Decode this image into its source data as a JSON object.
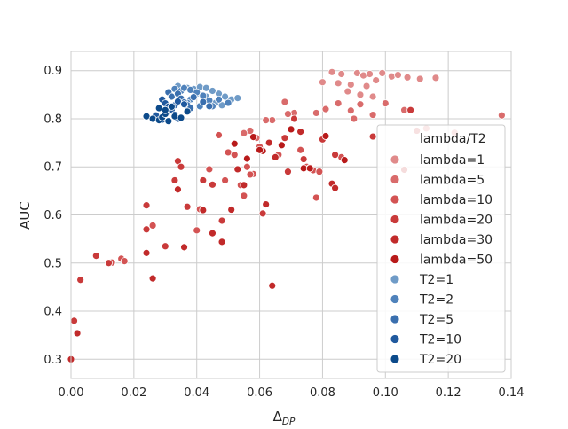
{
  "chart_data": {
    "type": "scatter",
    "title": "",
    "xlabel": "Δ",
    "xlabel_sub": "DP",
    "ylabel": "AUC",
    "xlim": [
      0.0,
      0.14
    ],
    "ylim": [
      0.26,
      0.94
    ],
    "xticks": [
      0.0,
      0.02,
      0.04,
      0.06,
      0.08,
      0.1,
      0.12,
      0.14
    ],
    "xtick_labels": [
      "0.00",
      "0.02",
      "0.04",
      "0.06",
      "0.08",
      "0.10",
      "0.12",
      "0.14"
    ],
    "yticks": [
      0.3,
      0.4,
      0.5,
      0.6,
      0.7,
      0.8,
      0.9
    ],
    "ytick_labels": [
      "0.3",
      "0.4",
      "0.5",
      "0.6",
      "0.7",
      "0.8",
      "0.9"
    ],
    "grid": true,
    "legend_title": "lambda/T2",
    "legend_position": "right",
    "series": [
      {
        "name": "lambda=1",
        "color": "#e08a8a",
        "points": [
          [
            0.083,
            0.897
          ],
          [
            0.086,
            0.893
          ],
          [
            0.091,
            0.895
          ],
          [
            0.093,
            0.89
          ],
          [
            0.095,
            0.893
          ],
          [
            0.099,
            0.895
          ],
          [
            0.102,
            0.888
          ],
          [
            0.104,
            0.891
          ],
          [
            0.107,
            0.886
          ],
          [
            0.111,
            0.883
          ],
          [
            0.116,
            0.885
          ],
          [
            0.08,
            0.876
          ],
          [
            0.085,
            0.874
          ],
          [
            0.089,
            0.871
          ],
          [
            0.094,
            0.868
          ],
          [
            0.097,
            0.88
          ],
          [
            0.088,
            0.857
          ],
          [
            0.092,
            0.85
          ],
          [
            0.096,
            0.846
          ]
        ]
      },
      {
        "name": "lambda=5",
        "color": "#d96b6b",
        "points": [
          [
            0.068,
            0.835
          ],
          [
            0.078,
            0.812
          ],
          [
            0.085,
            0.832
          ],
          [
            0.089,
            0.817
          ],
          [
            0.09,
            0.8
          ],
          [
            0.092,
            0.83
          ],
          [
            0.096,
            0.808
          ],
          [
            0.1,
            0.832
          ],
          [
            0.106,
            0.818
          ],
          [
            0.071,
            0.812
          ],
          [
            0.064,
            0.797
          ],
          [
            0.062,
            0.797
          ],
          [
            0.113,
            0.78
          ],
          [
            0.122,
            0.771
          ],
          [
            0.137,
            0.807
          ],
          [
            0.057,
            0.775
          ],
          [
            0.059,
            0.76
          ],
          [
            0.055,
            0.77
          ],
          [
            0.081,
            0.82
          ],
          [
            0.069,
            0.81
          ]
        ]
      },
      {
        "name": "lambda=10",
        "color": "#d35353",
        "points": [
          [
            0.047,
            0.766
          ],
          [
            0.05,
            0.73
          ],
          [
            0.052,
            0.725
          ],
          [
            0.056,
            0.7
          ],
          [
            0.058,
            0.685
          ],
          [
            0.057,
            0.684
          ],
          [
            0.06,
            0.742
          ],
          [
            0.066,
            0.725
          ],
          [
            0.073,
            0.735
          ],
          [
            0.077,
            0.693
          ],
          [
            0.086,
            0.72
          ],
          [
            0.079,
            0.69
          ],
          [
            0.075,
            0.7
          ],
          [
            0.049,
            0.672
          ],
          [
            0.055,
            0.64
          ],
          [
            0.051,
            0.611
          ],
          [
            0.054,
            0.662
          ],
          [
            0.041,
            0.612
          ],
          [
            0.044,
            0.695
          ],
          [
            0.04,
            0.568
          ],
          [
            0.026,
            0.578
          ],
          [
            0.016,
            0.509
          ],
          [
            0.017,
            0.504
          ],
          [
            0.013,
            0.501
          ],
          [
            0.078,
            0.636
          ]
        ]
      },
      {
        "name": "lambda=20",
        "color": "#c93a3a",
        "points": [
          [
            0.034,
            0.712
          ],
          [
            0.035,
            0.7
          ],
          [
            0.033,
            0.672
          ],
          [
            0.037,
            0.617
          ],
          [
            0.042,
            0.672
          ],
          [
            0.048,
            0.588
          ],
          [
            0.045,
            0.663
          ],
          [
            0.061,
            0.603
          ],
          [
            0.069,
            0.69
          ],
          [
            0.071,
            0.8
          ],
          [
            0.068,
            0.76
          ],
          [
            0.074,
            0.716
          ],
          [
            0.08,
            0.757
          ],
          [
            0.084,
            0.725
          ],
          [
            0.096,
            0.763
          ],
          [
            0.108,
            0.818
          ],
          [
            0.11,
            0.775
          ],
          [
            0.03,
            0.535
          ],
          [
            0.024,
            0.57
          ],
          [
            0.024,
            0.62
          ],
          [
            0.012,
            0.5
          ],
          [
            0.008,
            0.515
          ],
          [
            0.003,
            0.465
          ],
          [
            0.001,
            0.38
          ]
        ]
      },
      {
        "name": "lambda=30",
        "color": "#c12a2a",
        "points": [
          [
            0.034,
            0.653
          ],
          [
            0.036,
            0.533
          ],
          [
            0.042,
            0.61
          ],
          [
            0.045,
            0.562
          ],
          [
            0.048,
            0.544
          ],
          [
            0.051,
            0.611
          ],
          [
            0.053,
            0.695
          ],
          [
            0.055,
            0.662
          ],
          [
            0.062,
            0.622
          ],
          [
            0.063,
            0.75
          ],
          [
            0.065,
            0.72
          ],
          [
            0.073,
            0.773
          ],
          [
            0.076,
            0.698
          ],
          [
            0.083,
            0.665
          ],
          [
            0.084,
            0.656
          ],
          [
            0.024,
            0.521
          ],
          [
            0.026,
            0.468
          ],
          [
            0.002,
            0.354
          ],
          [
            0.0,
            0.3
          ],
          [
            0.064,
            0.453
          ]
        ]
      },
      {
        "name": "lambda=50",
        "color": "#b81a1a",
        "points": [
          [
            0.052,
            0.748
          ],
          [
            0.056,
            0.717
          ],
          [
            0.061,
            0.733
          ],
          [
            0.058,
            0.762
          ],
          [
            0.07,
            0.778
          ],
          [
            0.074,
            0.697
          ],
          [
            0.076,
            0.697
          ],
          [
            0.081,
            0.764
          ],
          [
            0.087,
            0.714
          ],
          [
            0.106,
            0.694
          ],
          [
            0.06,
            0.735
          ],
          [
            0.067,
            0.745
          ]
        ]
      },
      {
        "name": "T2=1",
        "color": "#6f9bc7",
        "points": [
          [
            0.034,
            0.868
          ],
          [
            0.037,
            0.864
          ],
          [
            0.039,
            0.862
          ],
          [
            0.041,
            0.866
          ],
          [
            0.043,
            0.864
          ],
          [
            0.045,
            0.858
          ],
          [
            0.047,
            0.852
          ],
          [
            0.049,
            0.846
          ],
          [
            0.051,
            0.84
          ],
          [
            0.053,
            0.843
          ],
          [
            0.04,
            0.852
          ],
          [
            0.043,
            0.846
          ],
          [
            0.046,
            0.833
          ],
          [
            0.048,
            0.828
          ]
        ]
      },
      {
        "name": "T2=2",
        "color": "#4f82bb",
        "points": [
          [
            0.033,
            0.862
          ],
          [
            0.035,
            0.858
          ],
          [
            0.036,
            0.864
          ],
          [
            0.038,
            0.86
          ],
          [
            0.04,
            0.855
          ],
          [
            0.042,
            0.848
          ],
          [
            0.044,
            0.838
          ],
          [
            0.045,
            0.826
          ],
          [
            0.047,
            0.84
          ],
          [
            0.05,
            0.833
          ],
          [
            0.038,
            0.84
          ],
          [
            0.037,
            0.833
          ],
          [
            0.041,
            0.826
          ]
        ]
      },
      {
        "name": "T2=5",
        "color": "#3a6fae",
        "points": [
          [
            0.031,
            0.855
          ],
          [
            0.032,
            0.846
          ],
          [
            0.034,
            0.852
          ],
          [
            0.035,
            0.842
          ],
          [
            0.036,
            0.834
          ],
          [
            0.037,
            0.828
          ],
          [
            0.038,
            0.822
          ],
          [
            0.039,
            0.845
          ],
          [
            0.042,
            0.835
          ],
          [
            0.044,
            0.826
          ],
          [
            0.033,
            0.828
          ],
          [
            0.031,
            0.815
          ]
        ]
      },
      {
        "name": "T2=10",
        "color": "#20599e",
        "points": [
          [
            0.029,
            0.84
          ],
          [
            0.03,
            0.832
          ],
          [
            0.031,
            0.825
          ],
          [
            0.032,
            0.818
          ],
          [
            0.033,
            0.808
          ],
          [
            0.034,
            0.8
          ],
          [
            0.034,
            0.836
          ],
          [
            0.03,
            0.812
          ],
          [
            0.028,
            0.803
          ],
          [
            0.036,
            0.83
          ],
          [
            0.027,
            0.807
          ],
          [
            0.029,
            0.798
          ]
        ]
      },
      {
        "name": "T2=20",
        "color": "#0c4a8a",
        "points": [
          [
            0.024,
            0.805
          ],
          [
            0.026,
            0.8
          ],
          [
            0.028,
            0.797
          ],
          [
            0.029,
            0.803
          ],
          [
            0.03,
            0.81
          ],
          [
            0.031,
            0.795
          ],
          [
            0.033,
            0.805
          ],
          [
            0.035,
            0.802
          ],
          [
            0.037,
            0.815
          ],
          [
            0.028,
            0.822
          ],
          [
            0.03,
            0.818
          ],
          [
            0.032,
            0.825
          ]
        ]
      }
    ]
  }
}
